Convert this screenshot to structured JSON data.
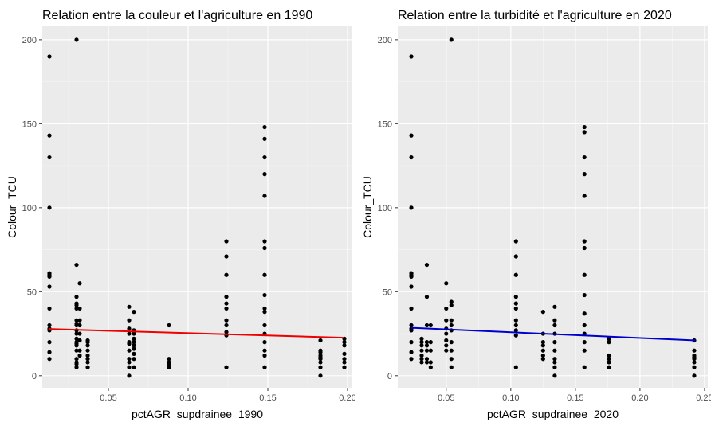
{
  "chart_data": [
    {
      "type": "scatter",
      "title": "Relation entre la couleur et l'agriculture en 1990",
      "xlabel": "pctAGR_supdrainee_1990",
      "ylabel": "Colour_TCU",
      "xlim": [
        0.0085,
        0.203
      ],
      "ylim": [
        -7.2,
        208
      ],
      "xticks": [
        0.05,
        0.1,
        0.15,
        0.2
      ],
      "xtick_labels": [
        "0.05",
        "0.10",
        "0.15",
        "0.20"
      ],
      "yticks": [
        0,
        50,
        100,
        150,
        200
      ],
      "ytick_labels": [
        "0",
        "50",
        "100",
        "150",
        "200"
      ],
      "grid": true,
      "legend": "none",
      "point_color": "#000000",
      "line_color": "#ee0000",
      "trend_line": {
        "x": [
          0.013,
          0.198
        ],
        "y": [
          27.8,
          22.6
        ]
      },
      "x": [
        0.013,
        0.013,
        0.013,
        0.013,
        0.013,
        0.013,
        0.013,
        0.013,
        0.013,
        0.013,
        0.013,
        0.013,
        0.013,
        0.013,
        0.013,
        0.03,
        0.03,
        0.03,
        0.03,
        0.03,
        0.03,
        0.03,
        0.03,
        0.03,
        0.03,
        0.03,
        0.03,
        0.03,
        0.03,
        0.03,
        0.03,
        0.03,
        0.03,
        0.03,
        0.03,
        0.032,
        0.032,
        0.032,
        0.032,
        0.032,
        0.032,
        0.032,
        0.032,
        0.037,
        0.037,
        0.037,
        0.037,
        0.037,
        0.037,
        0.037,
        0.037,
        0.063,
        0.063,
        0.063,
        0.063,
        0.063,
        0.063,
        0.063,
        0.063,
        0.063,
        0.063,
        0.063,
        0.066,
        0.066,
        0.066,
        0.066,
        0.066,
        0.066,
        0.066,
        0.066,
        0.066,
        0.066,
        0.088,
        0.088,
        0.088,
        0.088,
        0.088,
        0.124,
        0.124,
        0.124,
        0.124,
        0.124,
        0.124,
        0.124,
        0.124,
        0.124,
        0.124,
        0.124,
        0.148,
        0.148,
        0.148,
        0.148,
        0.148,
        0.148,
        0.148,
        0.148,
        0.148,
        0.148,
        0.148,
        0.148,
        0.148,
        0.148,
        0.148,
        0.148,
        0.148,
        0.183,
        0.183,
        0.183,
        0.183,
        0.183,
        0.183,
        0.183,
        0.183,
        0.183,
        0.198,
        0.198,
        0.198,
        0.198,
        0.198,
        0.198,
        0.198
      ],
      "y": [
        190,
        143,
        130,
        100,
        61,
        60,
        59,
        53,
        40,
        30,
        28,
        27,
        20,
        14,
        10,
        200,
        66,
        47,
        43,
        42,
        40,
        33,
        31,
        30,
        27,
        25,
        22,
        20,
        19,
        18,
        15,
        10,
        8,
        7,
        5,
        55,
        40,
        33,
        30,
        25,
        21,
        15,
        12,
        21,
        20,
        18,
        15,
        12,
        10,
        8,
        5,
        41,
        33,
        28,
        25,
        20,
        19,
        15,
        10,
        8,
        5,
        0,
        38,
        27,
        25,
        22,
        20,
        18,
        16,
        13,
        10,
        5,
        30,
        10,
        8,
        7,
        5,
        80,
        71,
        60,
        47,
        43,
        40,
        33,
        30,
        26,
        24,
        5,
        148,
        141,
        130,
        120,
        107,
        80,
        76,
        60,
        48,
        40,
        38,
        30,
        25,
        20,
        15,
        12,
        5,
        21,
        15,
        14,
        12,
        11,
        10,
        8,
        5,
        0,
        22,
        20,
        18,
        13,
        10,
        8,
        5
      ]
    },
    {
      "type": "scatter",
      "title": "Relation entre la turbidité et l'agriculture en 2020",
      "xlabel": "pctAGR_supdrainee_2020",
      "ylabel": "Colour_TCU",
      "xlim": [
        0.0125,
        0.2525
      ],
      "ylim": [
        -7.2,
        208
      ],
      "xticks": [
        0.05,
        0.1,
        0.15,
        0.2,
        0.25
      ],
      "xtick_labels": [
        "0.05",
        "0.10",
        "0.15",
        "0.20",
        "0.25"
      ],
      "yticks": [
        0,
        50,
        100,
        150,
        200
      ],
      "ytick_labels": [
        "0",
        "50",
        "100",
        "150",
        "200"
      ],
      "grid": true,
      "legend": "none",
      "point_color": "#000000",
      "line_color": "#0000cc",
      "trend_line": {
        "x": [
          0.023,
          0.243
        ],
        "y": [
          28.5,
          21.0
        ]
      },
      "x": [
        0.023,
        0.023,
        0.023,
        0.023,
        0.023,
        0.023,
        0.023,
        0.023,
        0.023,
        0.023,
        0.023,
        0.023,
        0.023,
        0.023,
        0.023,
        0.031,
        0.031,
        0.031,
        0.031,
        0.031,
        0.031,
        0.031,
        0.035,
        0.035,
        0.035,
        0.035,
        0.035,
        0.035,
        0.035,
        0.035,
        0.038,
        0.038,
        0.038,
        0.038,
        0.038,
        0.05,
        0.05,
        0.05,
        0.05,
        0.05,
        0.05,
        0.05,
        0.05,
        0.054,
        0.054,
        0.054,
        0.054,
        0.054,
        0.054,
        0.054,
        0.054,
        0.054,
        0.054,
        0.104,
        0.104,
        0.104,
        0.104,
        0.104,
        0.104,
        0.104,
        0.104,
        0.104,
        0.104,
        0.104,
        0.125,
        0.125,
        0.125,
        0.125,
        0.125,
        0.125,
        0.125,
        0.134,
        0.134,
        0.134,
        0.134,
        0.134,
        0.134,
        0.134,
        0.134,
        0.134,
        0.134,
        0.157,
        0.157,
        0.157,
        0.157,
        0.157,
        0.157,
        0.157,
        0.157,
        0.157,
        0.157,
        0.157,
        0.157,
        0.157,
        0.157,
        0.157,
        0.176,
        0.176,
        0.176,
        0.176,
        0.176,
        0.176,
        0.242,
        0.242,
        0.242,
        0.242,
        0.242,
        0.242,
        0.242,
        0.242
      ],
      "y": [
        190,
        143,
        130,
        100,
        61,
        60,
        59,
        53,
        40,
        30,
        28,
        27,
        20,
        14,
        10,
        22,
        20,
        18,
        15,
        12,
        10,
        8,
        66,
        47,
        30,
        20,
        18,
        15,
        10,
        8,
        30,
        20,
        15,
        8,
        5,
        55,
        40,
        33,
        28,
        25,
        21,
        18,
        15,
        200,
        44,
        42,
        33,
        30,
        27,
        20,
        15,
        10,
        5,
        80,
        71,
        60,
        47,
        43,
        40,
        33,
        30,
        27,
        24,
        5,
        38,
        25,
        20,
        18,
        15,
        12,
        10,
        41,
        33,
        30,
        25,
        20,
        15,
        10,
        8,
        5,
        0,
        148,
        145,
        130,
        120,
        107,
        80,
        76,
        60,
        48,
        37,
        30,
        25,
        20,
        15,
        5,
        22,
        20,
        12,
        10,
        8,
        5,
        21,
        15,
        12,
        11,
        10,
        8,
        5,
        0
      ]
    }
  ]
}
